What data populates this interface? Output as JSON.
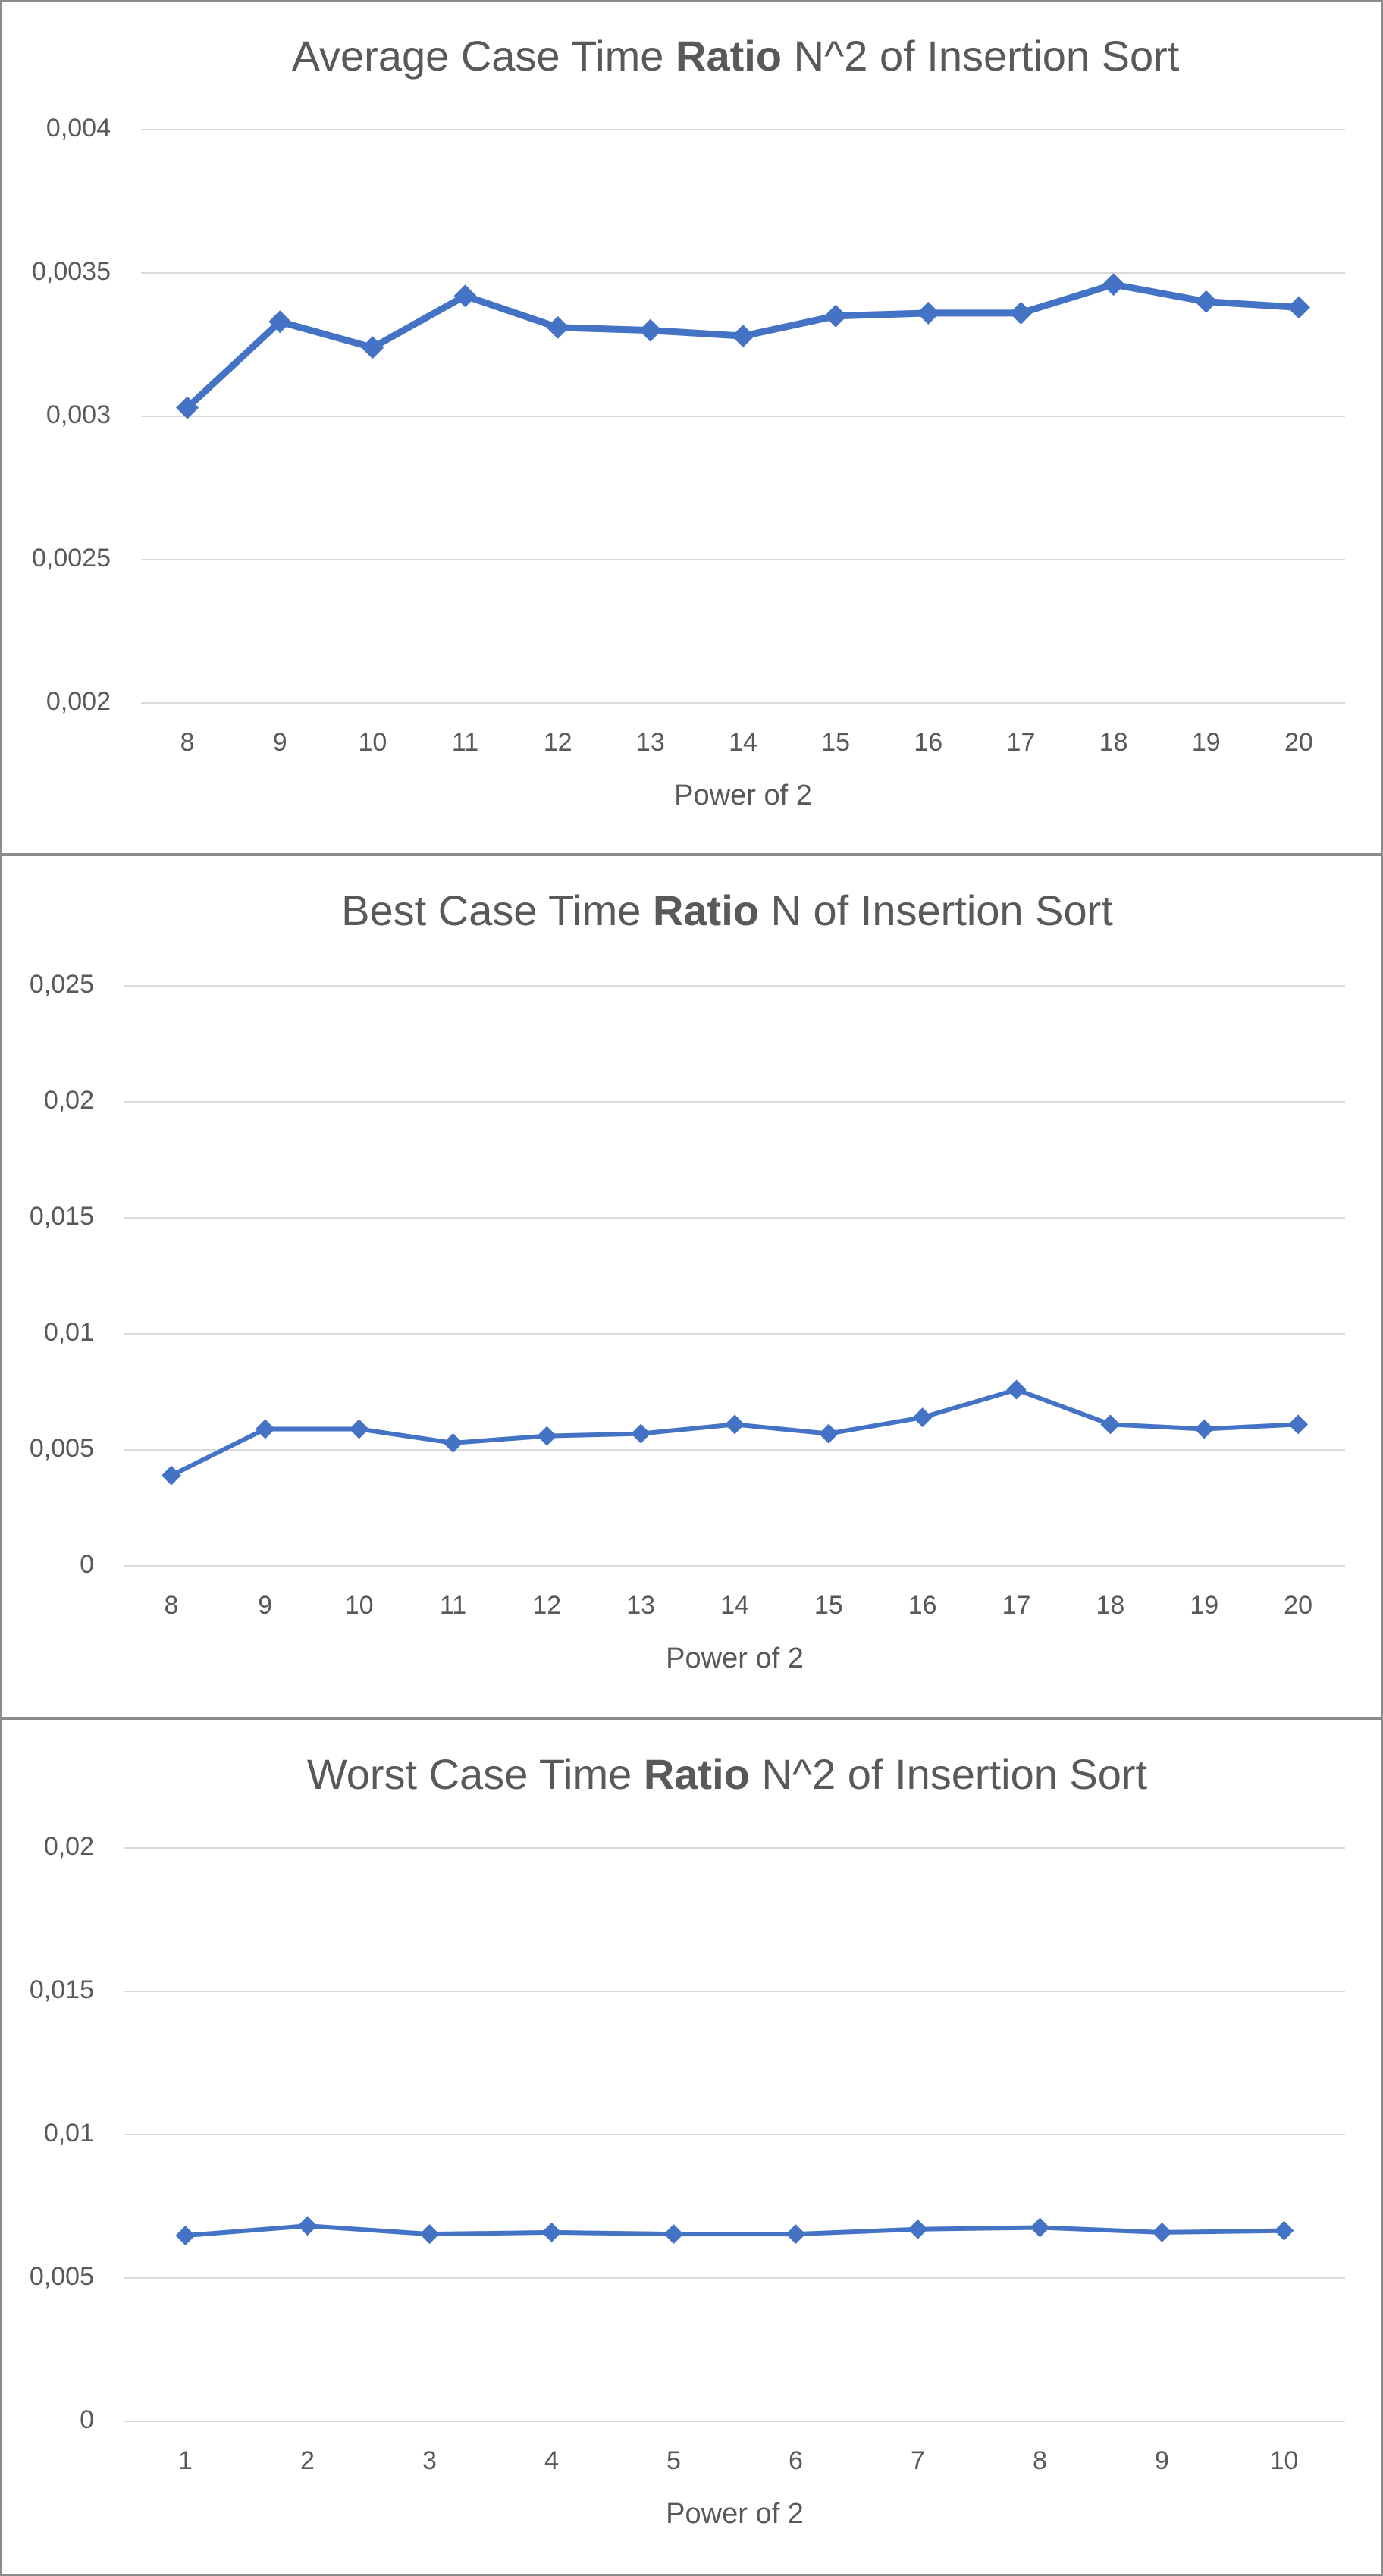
{
  "chart_data": [
    {
      "type": "line",
      "title": [
        {
          "text": "Average Case Time "
        },
        {
          "text": "Ratio",
          "bold": true
        },
        {
          "text": " N^2 of Insertion Sort"
        }
      ],
      "x_label": "Power of 2",
      "categories": [
        "8",
        "9",
        "10",
        "11",
        "12",
        "13",
        "14",
        "15",
        "16",
        "17",
        "18",
        "19",
        "20"
      ],
      "values": [
        0.00303,
        0.00333,
        0.00324,
        0.00342,
        0.00331,
        0.0033,
        0.00328,
        0.00335,
        0.00336,
        0.00336,
        0.00346,
        0.0034,
        0.00338
      ],
      "color": "#4472c4",
      "ylim": [
        0.002,
        0.004
      ],
      "yticks": [
        {
          "value": 0.002,
          "label": "0,002"
        },
        {
          "value": 0.0025,
          "label": "0,0025"
        },
        {
          "value": 0.003,
          "label": "0,003"
        },
        {
          "value": 0.0035,
          "label": "0,0035"
        },
        {
          "value": 0.004,
          "label": "0,004"
        }
      ],
      "grid": true
    },
    {
      "type": "line",
      "title": [
        {
          "text": "Best Case Time "
        },
        {
          "text": "Ratio",
          "bold": true
        },
        {
          "text": " N of Insertion Sort"
        }
      ],
      "x_label": "Power of 2",
      "categories": [
        "8",
        "9",
        "10",
        "11",
        "12",
        "13",
        "14",
        "15",
        "16",
        "17",
        "18",
        "19",
        "20"
      ],
      "values": [
        0.0039,
        0.0059,
        0.0059,
        0.0053,
        0.0056,
        0.0057,
        0.0061,
        0.0057,
        0.0064,
        0.0076,
        0.0061,
        0.0059,
        0.0061
      ],
      "color": "#4472c4",
      "ylim": [
        0,
        0.025
      ],
      "yticks": [
        0,
        {
          "value": 0.005,
          "label": "0,005"
        },
        {
          "value": 0.01,
          "label": "0,01"
        },
        {
          "value": 0.015,
          "label": "0,015"
        },
        {
          "value": 0.02,
          "label": "0,02"
        },
        {
          "value": 0.025,
          "label": "0,025"
        }
      ],
      "grid": true
    },
    {
      "type": "line",
      "title": [
        {
          "text": "Worst Case Time "
        },
        {
          "text": "Ratio",
          "bold": true
        },
        {
          "text": " N^2 of Insertion Sort"
        }
      ],
      "x_label": "Power of 2",
      "categories": [
        "1",
        "2",
        "3",
        "4",
        "5",
        "6",
        "7",
        "8",
        "9",
        "10"
      ],
      "values": [
        0.00648,
        0.00682,
        0.00653,
        0.00659,
        0.00653,
        0.00653,
        0.0067,
        0.00676,
        0.00659,
        0.00665
      ],
      "color": "#4472c4",
      "ylim": [
        0,
        0.02
      ],
      "yticks": [
        0,
        {
          "value": 0.005,
          "label": "0,005"
        },
        {
          "value": 0.01,
          "label": "0,01"
        },
        {
          "value": 0.015,
          "label": "0,015"
        },
        {
          "value": 0.02,
          "label": "0,02"
        }
      ],
      "grid": true
    }
  ]
}
